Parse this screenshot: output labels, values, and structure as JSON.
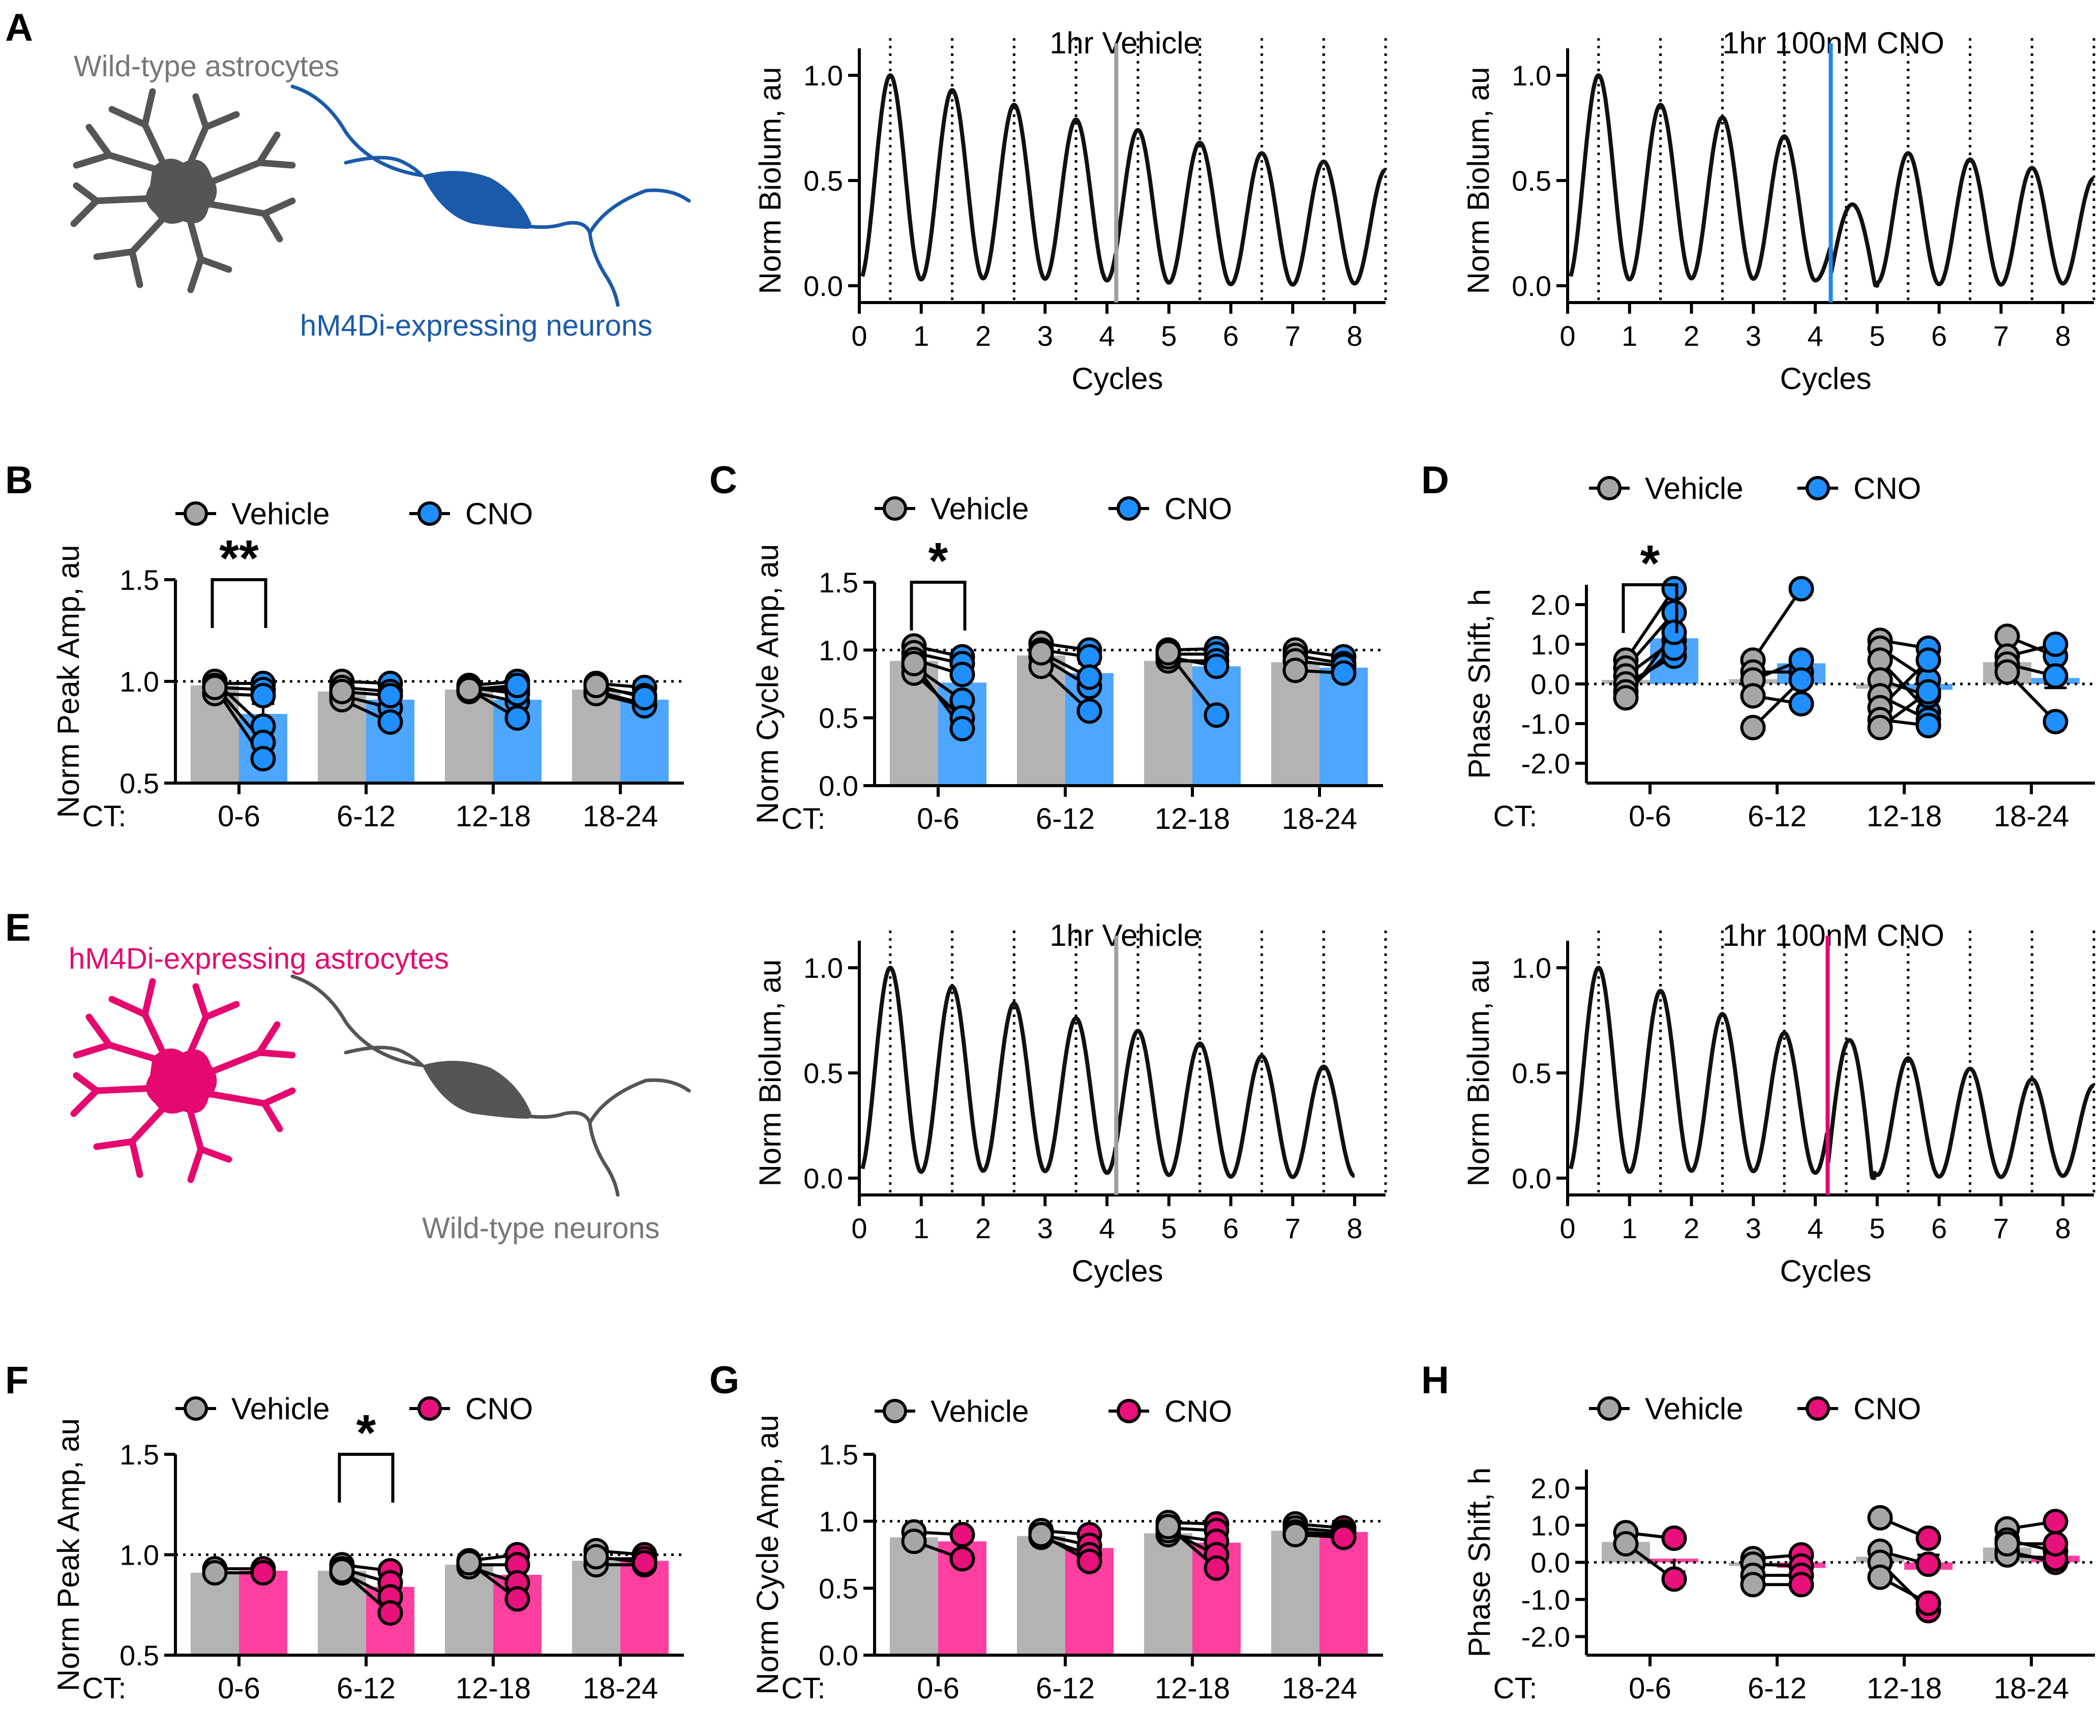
{
  "colors": {
    "vehicle_fill": "#b3b3b3",
    "vehicle_marker": "#a6a6a6",
    "cno_blue": "#4da6ff",
    "cno_blue_marker": "#1f8fff",
    "cno_pink": "#ff3fa0",
    "cno_pink_marker": "#e8107a",
    "neuron_blue": "#1a5aab",
    "neuron_gray": "#555555",
    "astro_gray": "#555555",
    "astro_pink": "#e5086f",
    "vline_vehicle": "#a0a0a0",
    "vline_blue": "#1e88e5",
    "vline_pink": "#e5086f"
  },
  "panels": {
    "A": {
      "letter": "A",
      "astro_label": "Wild-type astrocytes",
      "neuron_label": "hM4Di-expressing neurons"
    },
    "B": {
      "letter": "B"
    },
    "C": {
      "letter": "C"
    },
    "D": {
      "letter": "D"
    },
    "E": {
      "letter": "E",
      "astro_label": "hM4Di-expressing astrocytes",
      "neuron_label": "Wild-type neurons"
    },
    "F": {
      "letter": "F"
    },
    "G": {
      "letter": "G"
    },
    "H": {
      "letter": "H"
    }
  },
  "legend": {
    "vehicle": "Vehicle",
    "cno": "CNO"
  },
  "ct_label": "CT:",
  "chart_data": [
    {
      "panel": "A-vehicle",
      "type": "line",
      "title": "1hr Vehicle",
      "xlabel": "Cycles",
      "ylabel": "Norm Biolum, au",
      "xlim": [
        0,
        8.5
      ],
      "ylim": [
        -0.08,
        1.08
      ],
      "xticks": [
        "0",
        "1",
        "2",
        "3",
        "4",
        "5",
        "6",
        "7",
        "8"
      ],
      "yticks": [
        "0.0",
        "0.5",
        "1.0"
      ],
      "treatment_at": 4.15,
      "treatment_color": "vehicle",
      "peaks": [
        1.0,
        0.93,
        0.86,
        0.79,
        0.74,
        0.68,
        0.63,
        0.59,
        0.55
      ],
      "trace_end": 8.5,
      "dotted_lines": [
        0.5,
        1.5,
        2.5,
        3.5,
        4.5,
        5.5,
        6.5,
        7.5,
        8.5
      ]
    },
    {
      "panel": "A-cno",
      "type": "line",
      "title": "1hr 100nM CNO",
      "xlabel": "Cycles",
      "ylabel": "Norm Biolum, au",
      "xlim": [
        0,
        8.5
      ],
      "ylim": [
        -0.08,
        1.08
      ],
      "xticks": [
        "0",
        "1",
        "2",
        "3",
        "4",
        "5",
        "6",
        "7",
        "8"
      ],
      "yticks": [
        "0.0",
        "0.5",
        "1.0"
      ],
      "treatment_at": 4.25,
      "treatment_color": "blue",
      "peaks": [
        1.0,
        0.86,
        0.8,
        0.71,
        0.36,
        0.63,
        0.6,
        0.56,
        0.51
      ],
      "trace_end": 8.5,
      "dotted_lines": [
        0.5,
        1.5,
        2.5,
        3.5,
        4.5,
        5.5,
        6.5,
        7.5,
        8.5
      ]
    },
    {
      "panel": "E-vehicle",
      "type": "line",
      "title": "1hr Vehicle",
      "xlabel": "Cycles",
      "ylabel": "Norm Biolum, au",
      "xlim": [
        0,
        8.5
      ],
      "ylim": [
        -0.08,
        1.08
      ],
      "xticks": [
        "0",
        "1",
        "2",
        "3",
        "4",
        "5",
        "6",
        "7",
        "8"
      ],
      "yticks": [
        "0.0",
        "0.5",
        "1.0"
      ],
      "treatment_at": 4.15,
      "treatment_color": "vehicle",
      "peaks": [
        1.0,
        0.91,
        0.83,
        0.76,
        0.7,
        0.64,
        0.58,
        0.53
      ],
      "trace_end": 8.0,
      "dotted_lines": [
        0.5,
        1.5,
        2.5,
        3.5,
        4.5,
        5.5,
        6.5,
        7.5,
        8.5
      ]
    },
    {
      "panel": "E-cno",
      "type": "line",
      "title": "1hr 100nM CNO",
      "xlabel": "Cycles",
      "ylabel": "Norm Biolum, au",
      "xlim": [
        0,
        8.5
      ],
      "ylim": [
        -0.08,
        1.08
      ],
      "xticks": [
        "0",
        "1",
        "2",
        "3",
        "4",
        "5",
        "6",
        "7",
        "8"
      ],
      "yticks": [
        "0.0",
        "0.5",
        "1.0"
      ],
      "treatment_at": 4.2,
      "treatment_color": "pink",
      "peaks": [
        1.0,
        0.89,
        0.78,
        0.69,
        0.63,
        0.57,
        0.52,
        0.47,
        0.44
      ],
      "trace_end": 8.5,
      "dotted_lines": [
        0.5,
        1.5,
        2.5,
        3.5,
        4.5,
        5.5,
        6.5,
        7.5,
        8.5
      ]
    },
    {
      "panel": "B",
      "type": "bar",
      "ylabel": "Norm Peak Amp, au",
      "ylim": [
        0.5,
        1.5
      ],
      "yticks": [
        "0.5",
        "1.0",
        "1.5"
      ],
      "reference": 1.0,
      "categories": [
        "0-6",
        "6-12",
        "12-18",
        "18-24"
      ],
      "cno_color": "blue",
      "series": [
        {
          "name": "Vehicle",
          "values": [
            0.98,
            0.95,
            0.96,
            0.96
          ]
        },
        {
          "name": "CNO",
          "values": [
            0.84,
            0.91,
            0.91,
            0.91
          ]
        }
      ],
      "cno_sem": [
        0.05,
        0.03,
        0.03,
        0.02
      ],
      "pairs": [
        [
          [
            0.99,
            0.99
          ],
          [
            0.97,
            0.96
          ],
          [
            0.94,
            0.93
          ],
          [
            1.0,
            0.78
          ],
          [
            0.98,
            0.7
          ],
          [
            0.97,
            0.62
          ]
        ],
        [
          [
            1.0,
            0.99
          ],
          [
            0.97,
            0.95
          ],
          [
            0.93,
            0.87
          ],
          [
            0.91,
            0.8
          ],
          [
            0.95,
            0.93
          ]
        ],
        [
          [
            0.98,
            1.0
          ],
          [
            0.97,
            0.96
          ],
          [
            0.95,
            0.9
          ],
          [
            0.96,
            0.82
          ],
          [
            0.97,
            0.94
          ],
          [
            0.96,
            0.98
          ]
        ],
        [
          [
            0.99,
            0.97
          ],
          [
            0.97,
            0.93
          ],
          [
            0.95,
            0.89
          ],
          [
            0.94,
            0.88
          ],
          [
            0.98,
            0.92
          ]
        ]
      ],
      "significance": {
        "category": 0,
        "label": "**"
      }
    },
    {
      "panel": "C",
      "type": "bar",
      "ylabel": "Norm Cycle Amp, au",
      "ylim": [
        0,
        1.5
      ],
      "yticks": [
        "0.0",
        "0.5",
        "1.0",
        "1.5"
      ],
      "reference": 1.0,
      "categories": [
        "0-6",
        "6-12",
        "12-18",
        "18-24"
      ],
      "cno_color": "blue",
      "series": [
        {
          "name": "Vehicle",
          "values": [
            0.92,
            0.96,
            0.92,
            0.91
          ]
        },
        {
          "name": "CNO",
          "values": [
            0.76,
            0.83,
            0.88,
            0.87
          ]
        }
      ],
      "cno_sem": [
        0.08,
        0.07,
        0.06,
        0.03
      ],
      "pairs": [
        [
          [
            1.03,
            0.95
          ],
          [
            0.98,
            0.9
          ],
          [
            0.93,
            0.82
          ],
          [
            0.88,
            0.63
          ],
          [
            0.83,
            0.5
          ],
          [
            0.9,
            0.42
          ]
        ],
        [
          [
            1.05,
            1.0
          ],
          [
            1.0,
            0.95
          ],
          [
            0.95,
            0.73
          ],
          [
            0.88,
            0.55
          ],
          [
            0.98,
            0.8
          ]
        ],
        [
          [
            1.0,
            1.01
          ],
          [
            0.97,
            0.97
          ],
          [
            0.92,
            0.92
          ],
          [
            0.95,
            0.88
          ],
          [
            0.98,
            0.52
          ]
        ],
        [
          [
            1.0,
            0.95
          ],
          [
            0.96,
            0.9
          ],
          [
            0.92,
            0.88
          ],
          [
            0.85,
            0.83
          ]
        ]
      ],
      "significance": {
        "category": 0,
        "label": "*"
      }
    },
    {
      "panel": "D",
      "type": "bar",
      "ylabel": "Phase Shift, h",
      "ylim": [
        -2.5,
        2.5
      ],
      "yticks": [
        "-2.0",
        "-1.0",
        "0.0",
        "1.0",
        "2.0"
      ],
      "reference": 0.0,
      "categories": [
        "0-6",
        "6-12",
        "12-18",
        "18-24"
      ],
      "cno_color": "blue",
      "series": [
        {
          "name": "Vehicle",
          "values": [
            0.1,
            0.12,
            -0.12,
            0.55
          ]
        },
        {
          "name": "CNO",
          "values": [
            1.15,
            0.52,
            -0.15,
            0.15
          ]
        }
      ],
      "cno_sem": [
        0.2,
        0.3,
        0.2,
        0.25
      ],
      "pairs": [
        [
          [
            0.6,
            2.4
          ],
          [
            0.4,
            1.8
          ],
          [
            0.2,
            1.1
          ],
          [
            0.0,
            0.7
          ],
          [
            -0.2,
            0.9
          ],
          [
            -0.35,
            1.3
          ]
        ],
        [
          [
            0.6,
            2.4
          ],
          [
            0.3,
            0.3
          ],
          [
            0.1,
            0.6
          ],
          [
            -0.3,
            -0.5
          ],
          [
            -1.1,
            0.1
          ]
        ],
        [
          [
            1.1,
            0.9
          ],
          [
            0.9,
            0.1
          ],
          [
            0.6,
            -0.7
          ],
          [
            0.1,
            -0.3
          ],
          [
            -0.3,
            -0.9
          ],
          [
            -0.6,
            0.6
          ],
          [
            -0.9,
            -1.05
          ],
          [
            -1.1,
            -0.2
          ]
        ],
        [
          [
            1.2,
            0.7
          ],
          [
            0.7,
            1.0
          ],
          [
            0.5,
            0.2
          ],
          [
            0.3,
            -0.95
          ]
        ]
      ],
      "significance": {
        "category": 0,
        "label": "*"
      }
    },
    {
      "panel": "F",
      "type": "bar",
      "ylabel": "Norm Peak Amp, au",
      "ylim": [
        0.5,
        1.5
      ],
      "yticks": [
        "0.5",
        "1.0",
        "1.5"
      ],
      "reference": 1.0,
      "categories": [
        "0-6",
        "6-12",
        "12-18",
        "18-24"
      ],
      "cno_color": "pink",
      "series": [
        {
          "name": "Vehicle",
          "values": [
            0.91,
            0.92,
            0.95,
            0.97
          ]
        },
        {
          "name": "CNO",
          "values": [
            0.92,
            0.84,
            0.9,
            0.97
          ]
        }
      ],
      "cno_sem": [
        0.01,
        0.04,
        0.04,
        0.01
      ],
      "pairs": [
        [
          [
            0.93,
            0.93
          ],
          [
            0.91,
            0.91
          ]
        ],
        [
          [
            0.95,
            0.92
          ],
          [
            0.93,
            0.86
          ],
          [
            0.91,
            0.79
          ],
          [
            0.92,
            0.71
          ]
        ],
        [
          [
            0.97,
            1.0
          ],
          [
            0.95,
            0.95
          ],
          [
            0.94,
            0.86
          ],
          [
            0.96,
            0.78
          ]
        ],
        [
          [
            1.02,
            1.0
          ],
          [
            0.98,
            0.98
          ],
          [
            0.95,
            0.95
          ],
          [
            0.99,
            0.96
          ]
        ]
      ],
      "significance": {
        "category": 1,
        "label": "*"
      }
    },
    {
      "panel": "G",
      "type": "bar",
      "ylabel": "Norm Cycle Amp, au",
      "ylim": [
        0,
        1.5
      ],
      "yticks": [
        "0.0",
        "0.5",
        "1.0",
        "1.5"
      ],
      "reference": 1.0,
      "categories": [
        "0-6",
        "6-12",
        "12-18",
        "18-24"
      ],
      "cno_color": "pink",
      "series": [
        {
          "name": "Vehicle",
          "values": [
            0.88,
            0.89,
            0.91,
            0.93
          ]
        },
        {
          "name": "CNO",
          "values": [
            0.85,
            0.8,
            0.84,
            0.92
          ]
        }
      ],
      "cno_sem": [
        0.04,
        0.05,
        0.06,
        0.02
      ],
      "pairs": [
        [
          [
            0.92,
            0.9
          ],
          [
            0.85,
            0.72
          ]
        ],
        [
          [
            0.93,
            0.9
          ],
          [
            0.9,
            0.82
          ],
          [
            0.88,
            0.75
          ],
          [
            0.9,
            0.7
          ]
        ],
        [
          [
            0.99,
            0.98
          ],
          [
            0.95,
            0.93
          ],
          [
            0.9,
            0.85
          ],
          [
            0.93,
            0.75
          ],
          [
            0.96,
            0.65
          ]
        ],
        [
          [
            0.98,
            0.95
          ],
          [
            0.95,
            0.92
          ],
          [
            0.92,
            0.9
          ],
          [
            0.9,
            0.88
          ]
        ]
      ],
      "significance": null
    },
    {
      "panel": "H",
      "type": "bar",
      "ylabel": "Phase Shift, h",
      "ylim": [
        -2.5,
        2.5
      ],
      "yticks": [
        "-2.0",
        "-1.0",
        "0.0",
        "1.0",
        "2.0"
      ],
      "reference": 0.0,
      "categories": [
        "0-6",
        "6-12",
        "12-18",
        "18-24"
      ],
      "cno_color": "pink",
      "series": [
        {
          "name": "Vehicle",
          "values": [
            0.55,
            -0.1,
            0.15,
            0.4
          ]
        },
        {
          "name": "CNO",
          "values": [
            0.1,
            -0.15,
            -0.2,
            0.18
          ]
        }
      ],
      "cno_sem": [
        0.35,
        0.15,
        0.4,
        0.2
      ],
      "pairs": [
        [
          [
            0.8,
            0.65
          ],
          [
            0.5,
            -0.45
          ]
        ],
        [
          [
            0.1,
            0.2
          ],
          [
            -0.05,
            -0.1
          ],
          [
            -0.35,
            -0.35
          ],
          [
            -0.6,
            -0.6
          ]
        ],
        [
          [
            1.2,
            0.65
          ],
          [
            0.3,
            -0.05
          ],
          [
            0.0,
            -1.3
          ],
          [
            -0.4,
            -1.1
          ]
        ],
        [
          [
            0.9,
            1.1
          ],
          [
            0.6,
            0.3
          ],
          [
            0.3,
            0.0
          ],
          [
            0.2,
            0.1
          ],
          [
            0.5,
            0.5
          ]
        ]
      ],
      "significance": null
    }
  ]
}
